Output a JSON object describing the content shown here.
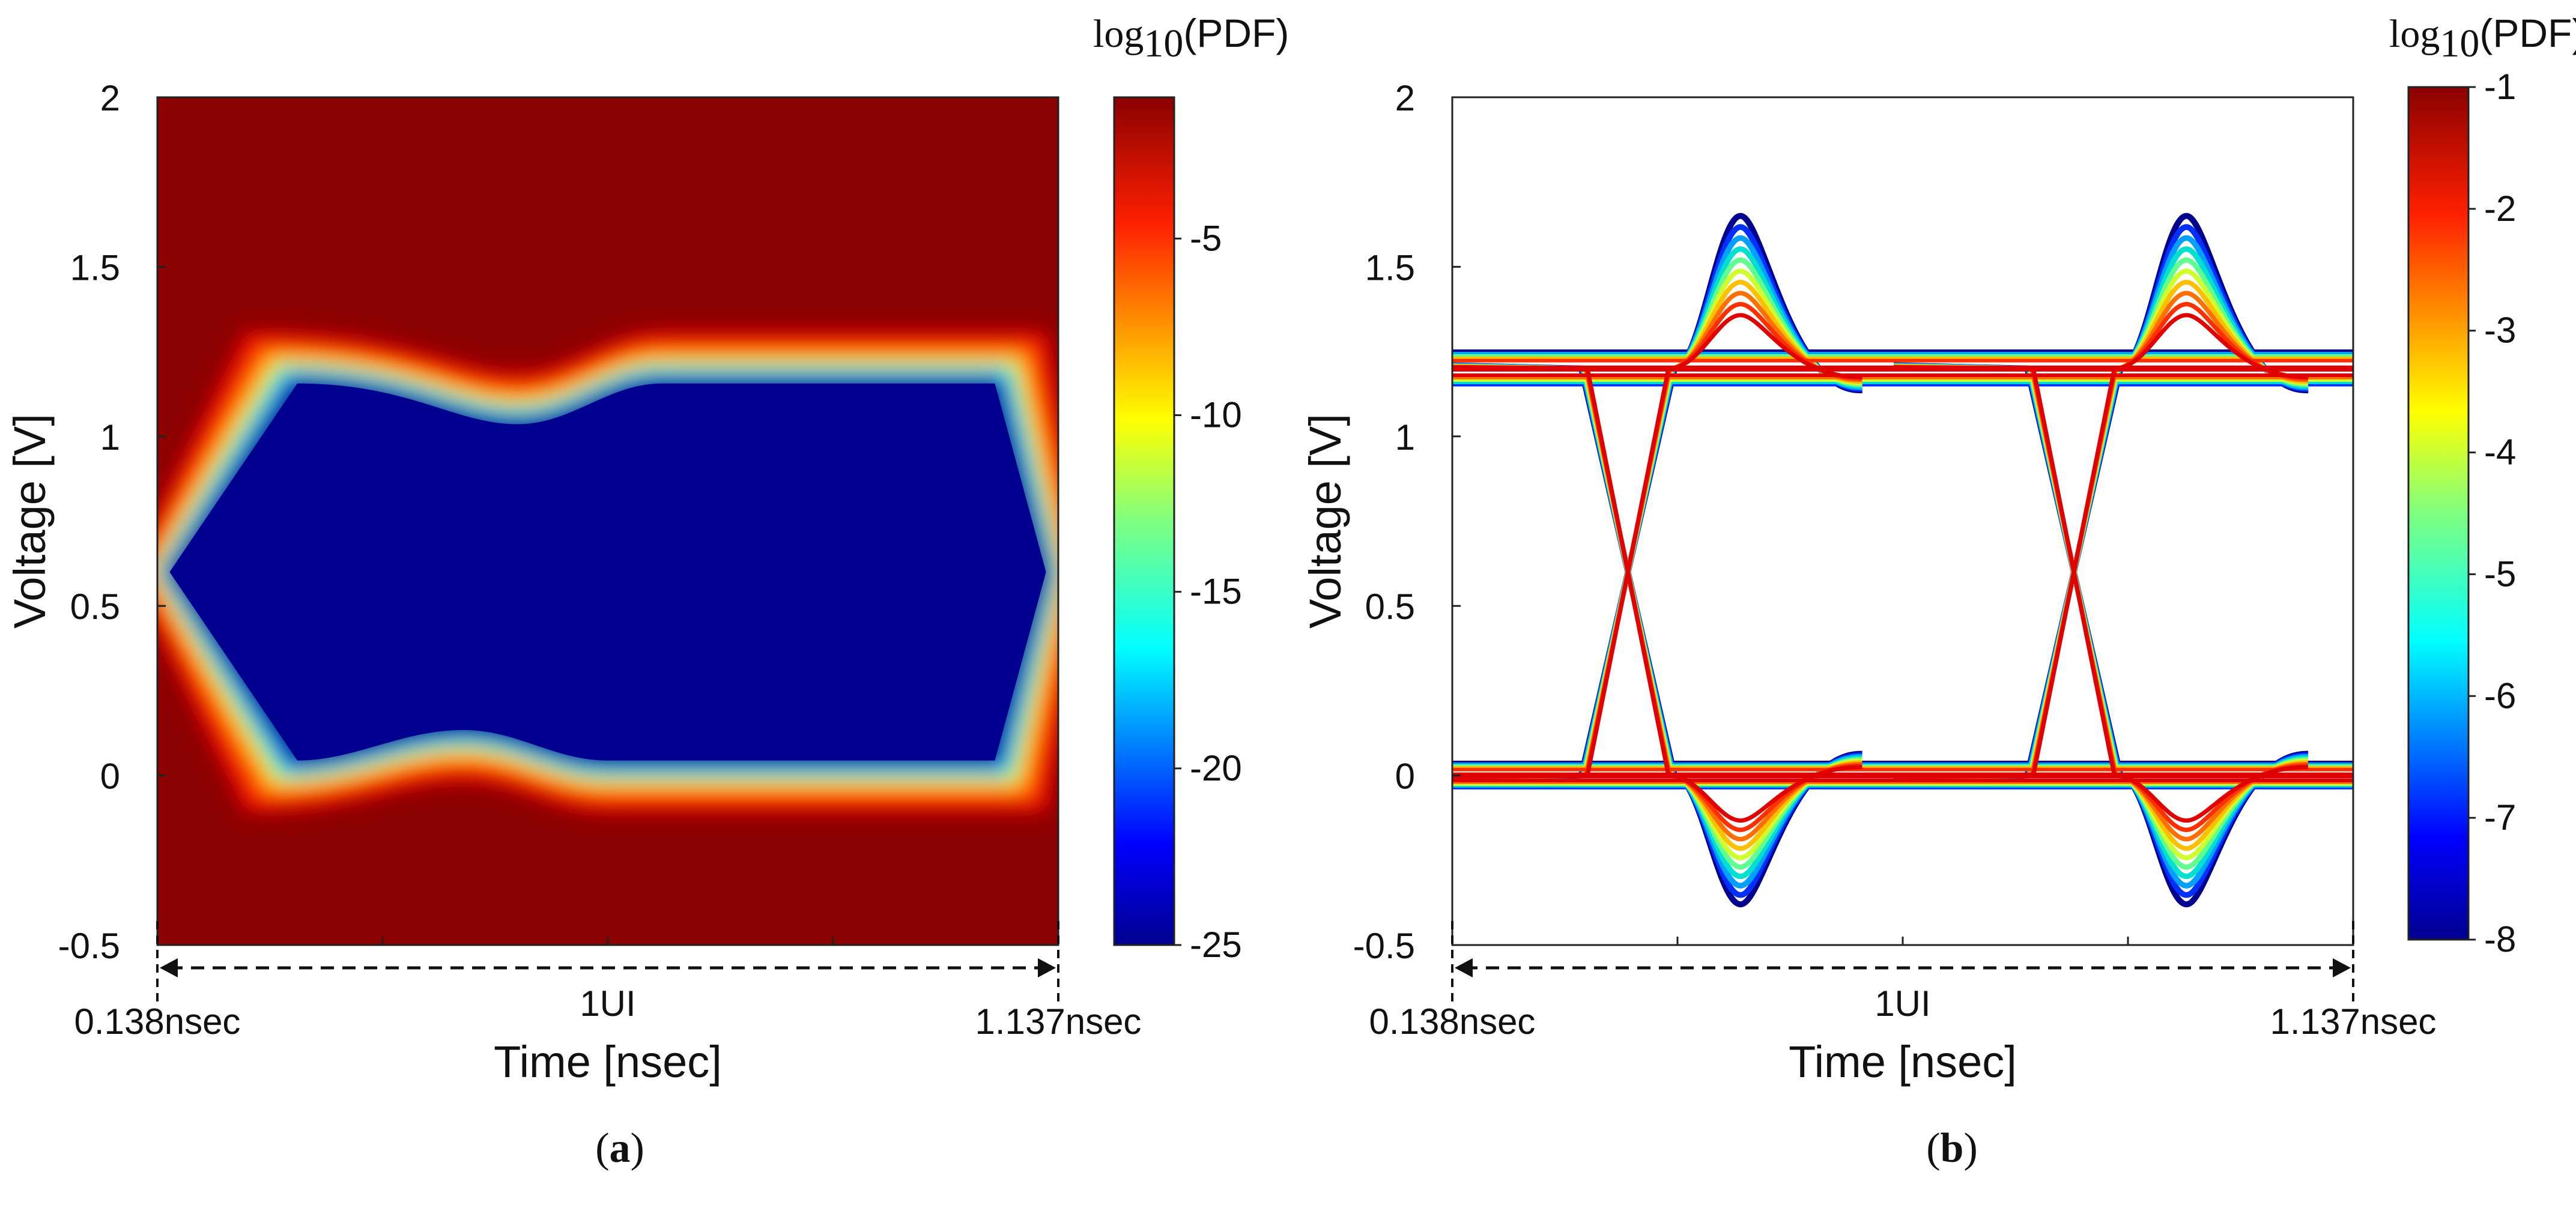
{
  "chart_data": [
    {
      "type": "heatmap",
      "panel_label": "a",
      "title": "",
      "xlabel": "Time [nsec]",
      "ylabel": "Voltage [V]",
      "ylim": [
        -0.5,
        2
      ],
      "y_ticks": [
        "2",
        "1.5",
        "1",
        "0.5",
        "0",
        "-0.5"
      ],
      "x_range_start": "0.138nsec",
      "x_range_end": "1.137nsec",
      "x_span_label": "1UI",
      "colorbar": {
        "label_prefix": "log",
        "label_sub": "10",
        "label_suffix": "(PDF)",
        "range": [
          -25,
          -1
        ],
        "ticks": [
          "-5",
          "-10",
          "-15",
          "-20",
          "-25"
        ]
      },
      "eye_opening": {
        "center_voltage": 0.6,
        "top_voltage_min": 1.05,
        "top_voltage_max": 1.17,
        "bottom_voltage_min": 0.03,
        "bottom_voltage_max": 0.12
      }
    },
    {
      "type": "heatmap",
      "panel_label": "b",
      "title": "",
      "xlabel": "Time [nsec]",
      "ylabel": "Voltage [V]",
      "ylim": [
        -0.5,
        2
      ],
      "y_ticks": [
        "2",
        "1.5",
        "1",
        "0.5",
        "0",
        "-0.5"
      ],
      "x_range_start": "0.138nsec",
      "x_range_end": "1.137nsec",
      "x_span_label": "1UI",
      "colorbar": {
        "label_prefix": "log",
        "label_sub": "10",
        "label_suffix": "(PDF)",
        "range": [
          -8,
          -1
        ],
        "ticks": [
          "-1",
          "-2",
          "-3",
          "-4",
          "-5",
          "-6",
          "-7",
          "-8"
        ]
      },
      "traces": {
        "high_level": 1.2,
        "low_level": 0.0,
        "overshoot_peak": 1.65,
        "undershoot_peak": -0.38
      }
    }
  ]
}
